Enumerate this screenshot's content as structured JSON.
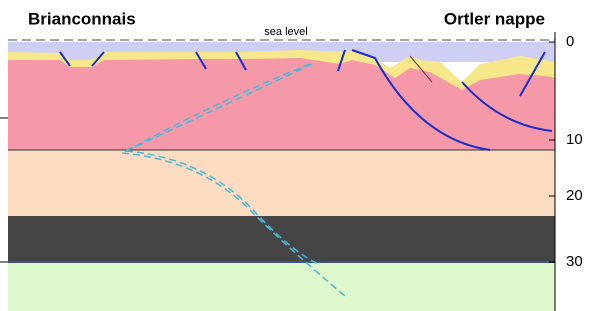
{
  "header": {
    "left_label": "Brianconnais",
    "right_label": "Ortler nappe"
  },
  "annotations": {
    "sea_level": "sea level"
  },
  "depth_axis": {
    "ticks": [
      "0",
      "10",
      "20",
      "30"
    ]
  }
}
